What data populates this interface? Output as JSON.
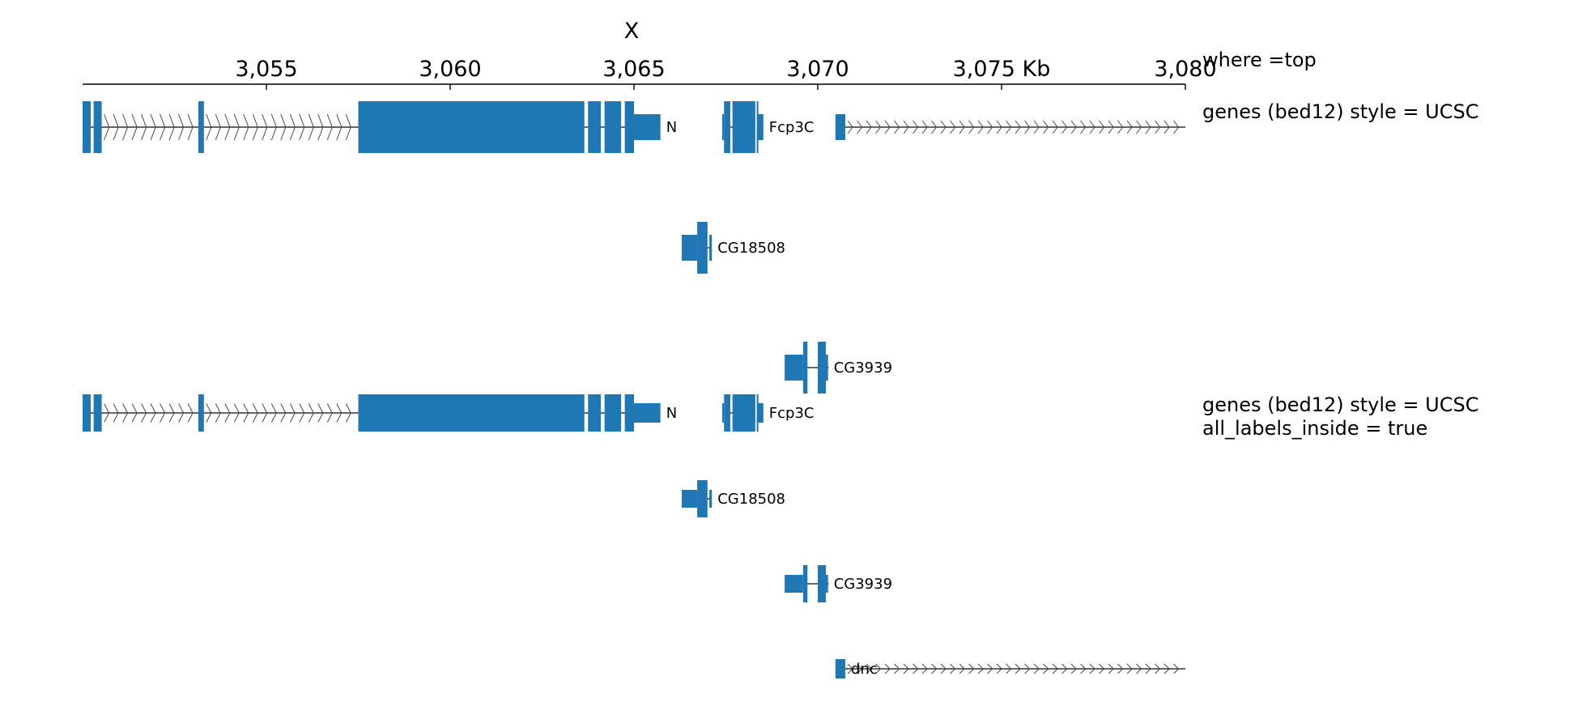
{
  "axis": {
    "chromosome": "X",
    "range_kb": [
      3050,
      3080
    ],
    "ticks": [
      {
        "value": 3055,
        "label": "3,055"
      },
      {
        "value": 3060,
        "label": "3,060"
      },
      {
        "value": 3065,
        "label": "3,065"
      },
      {
        "value": 3070,
        "label": "3,070"
      },
      {
        "value": 3075,
        "label": "3,075 Kb"
      },
      {
        "value": 3080,
        "label": "3,080"
      }
    ],
    "title": "where =top"
  },
  "tracks": [
    {
      "title": "genes (bed12) style = UCSC",
      "genes": [
        {
          "name": "N",
          "strand": "+",
          "line_start": 3050,
          "line_end": 3065,
          "exons": [
            {
              "s": 3050.0,
              "e": 3050.22,
              "coding": true
            },
            {
              "s": 3050.3,
              "e": 3050.52,
              "coding": true
            },
            {
              "s": 3053.15,
              "e": 3053.3,
              "coding": true
            },
            {
              "s": 3057.5,
              "e": 3063.65,
              "coding": true
            },
            {
              "s": 3063.75,
              "e": 3064.1,
              "coding": true
            },
            {
              "s": 3064.2,
              "e": 3064.65,
              "coding": true
            },
            {
              "s": 3064.75,
              "e": 3065.0,
              "coding": true
            },
            {
              "s": 3065.0,
              "e": 3065.72,
              "coding": false
            }
          ]
        },
        {
          "name": "Fcp3C",
          "strand": "+",
          "line_start": 3067.4,
          "line_end": 3068.3,
          "exons": [
            {
              "s": 3067.4,
              "e": 3067.45,
              "coding": false
            },
            {
              "s": 3067.45,
              "e": 3067.62,
              "coding": true
            },
            {
              "s": 3067.68,
              "e": 3068.3,
              "coding": true
            },
            {
              "s": 3068.34,
              "e": 3068.38,
              "coding": true
            },
            {
              "s": 3068.38,
              "e": 3068.52,
              "coding": false
            }
          ]
        },
        {
          "name": "",
          "strand": "+",
          "line_start": 3070.5,
          "line_end": 3080,
          "exons": [
            {
              "s": 3070.48,
              "e": 3070.75,
              "coding": false
            }
          ]
        },
        {
          "name": "CG18508",
          "strand": "-",
          "line_start": 3066.3,
          "line_end": 3067.1,
          "exons": [
            {
              "s": 3066.3,
              "e": 3066.72,
              "coding": false
            },
            {
              "s": 3066.72,
              "e": 3067.0,
              "coding": true
            },
            {
              "s": 3067.05,
              "e": 3067.12,
              "coding": false
            }
          ]
        },
        {
          "name": "CG3939",
          "strand": "+",
          "line_start": 3069.1,
          "line_end": 3070.3,
          "exons": [
            {
              "s": 3069.1,
              "e": 3069.6,
              "coding": false
            },
            {
              "s": 3069.6,
              "e": 3069.72,
              "coding": true
            },
            {
              "s": 3070.0,
              "e": 3070.22,
              "coding": true
            },
            {
              "s": 3070.22,
              "e": 3070.28,
              "coding": false
            }
          ]
        }
      ]
    },
    {
      "title_lines": [
        "genes (bed12) style = UCSC",
        "all_labels_inside = true"
      ],
      "genes": [
        {
          "name": "N",
          "strand": "+",
          "line_start": 3050,
          "line_end": 3065,
          "exons": [
            {
              "s": 3050.0,
              "e": 3050.22,
              "coding": true
            },
            {
              "s": 3050.3,
              "e": 3050.52,
              "coding": true
            },
            {
              "s": 3053.15,
              "e": 3053.3,
              "coding": true
            },
            {
              "s": 3057.5,
              "e": 3063.65,
              "coding": true
            },
            {
              "s": 3063.75,
              "e": 3064.1,
              "coding": true
            },
            {
              "s": 3064.2,
              "e": 3064.65,
              "coding": true
            },
            {
              "s": 3064.75,
              "e": 3065.0,
              "coding": true
            },
            {
              "s": 3065.0,
              "e": 3065.72,
              "coding": false
            }
          ]
        },
        {
          "name": "Fcp3C",
          "strand": "+",
          "line_start": 3067.4,
          "line_end": 3068.3,
          "exons": [
            {
              "s": 3067.4,
              "e": 3067.45,
              "coding": false
            },
            {
              "s": 3067.45,
              "e": 3067.62,
              "coding": true
            },
            {
              "s": 3067.68,
              "e": 3068.3,
              "coding": true
            },
            {
              "s": 3068.34,
              "e": 3068.38,
              "coding": true
            },
            {
              "s": 3068.38,
              "e": 3068.52,
              "coding": false
            }
          ]
        },
        {
          "name": "CG18508",
          "strand": "-",
          "line_start": 3066.3,
          "line_end": 3067.1,
          "exons": [
            {
              "s": 3066.3,
              "e": 3066.72,
              "coding": false
            },
            {
              "s": 3066.72,
              "e": 3067.0,
              "coding": true
            },
            {
              "s": 3067.05,
              "e": 3067.12,
              "coding": false
            }
          ]
        },
        {
          "name": "CG3939",
          "strand": "+",
          "line_start": 3069.1,
          "line_end": 3070.3,
          "exons": [
            {
              "s": 3069.1,
              "e": 3069.6,
              "coding": false
            },
            {
              "s": 3069.6,
              "e": 3069.72,
              "coding": true
            },
            {
              "s": 3070.0,
              "e": 3070.22,
              "coding": true
            },
            {
              "s": 3070.22,
              "e": 3070.28,
              "coding": false
            }
          ]
        },
        {
          "name": "dnc",
          "strand": "+",
          "line_start": 3070.5,
          "line_end": 3080,
          "exons": [
            {
              "s": 3070.48,
              "e": 3070.75,
              "coding": false
            }
          ]
        }
      ]
    }
  ],
  "colors": {
    "gene_fill": "#1f77b4",
    "intron": "#333333",
    "axis": "#000000"
  }
}
